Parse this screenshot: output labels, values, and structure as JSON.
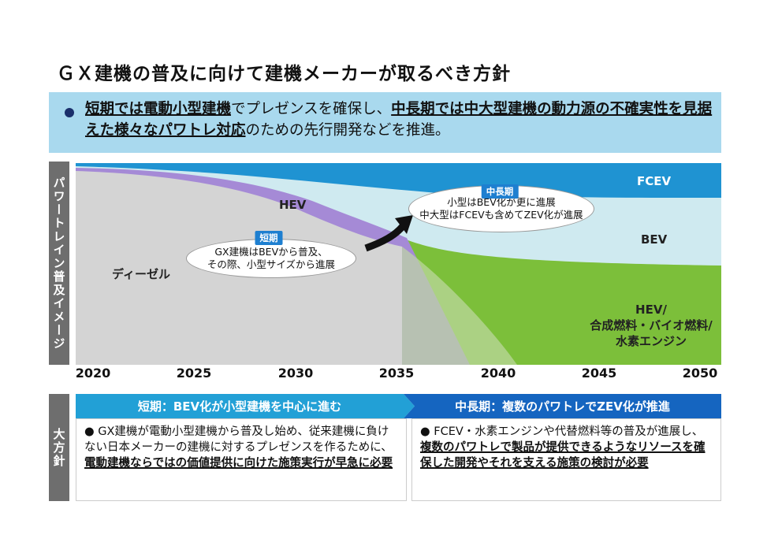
{
  "title": "ＧＸ建機の普及に向けて建機メーカーが取るべき方針",
  "summary": {
    "p1": "短期では電動小型建機",
    "p2": "でプレゼンスを確保し、",
    "p3": "中長期では中大型建機の動力源の不確実性を見据えた様々なパワトレ対応",
    "p4": "のための先行開発などを推進。"
  },
  "chart": {
    "side_label": "パワートレイン普及イメージ",
    "regions": {
      "fcev": "FCEV",
      "bev": "BEV",
      "hev": "HEV",
      "diesel": "ディーゼル",
      "hev2_l1": "HEV/",
      "hev2_l2": "合成燃料・バイオ燃料/",
      "hev2_l3": "水素エンジン"
    },
    "callout_short": {
      "badge": "短期",
      "l1": "GX建機はBEVから普及、",
      "l2": "その際、小型サイズから進展"
    },
    "callout_long": {
      "badge": "中長期",
      "l1": "小型はBEV化が更に進展",
      "l2": "中大型はFCEVも含めてZEV化が進展"
    },
    "years": [
      "2020",
      "2025",
      "2030",
      "2035",
      "2040",
      "2045",
      "2050"
    ],
    "colors": {
      "fcev": "#1f93d2",
      "bev": "#cfeaf0",
      "hev": "#a58ad6",
      "diesel": "#d4d4d4",
      "green": "#7cbf3a"
    }
  },
  "policy": {
    "side_label": "大方針",
    "short": {
      "header": "短期：BEV化が小型建機を中心に進む",
      "t1": "GX建機が電動小型建機から普及し始め、従来建機に負けない日本メーカーの建機に対するプレゼンスを作るために、",
      "t2": "電動建機ならではの価値提供に向けた施策実行が早急に必要"
    },
    "long": {
      "header": "中長期：複数のパワトレでZEV化が推進",
      "t1": "FCEV・水素エンジンや代替燃料等の普及が進展し、",
      "t2": "複数のパワトレで製品が提供できるようなリソースを確保した開発やそれを支える施策の検討が必要"
    }
  }
}
